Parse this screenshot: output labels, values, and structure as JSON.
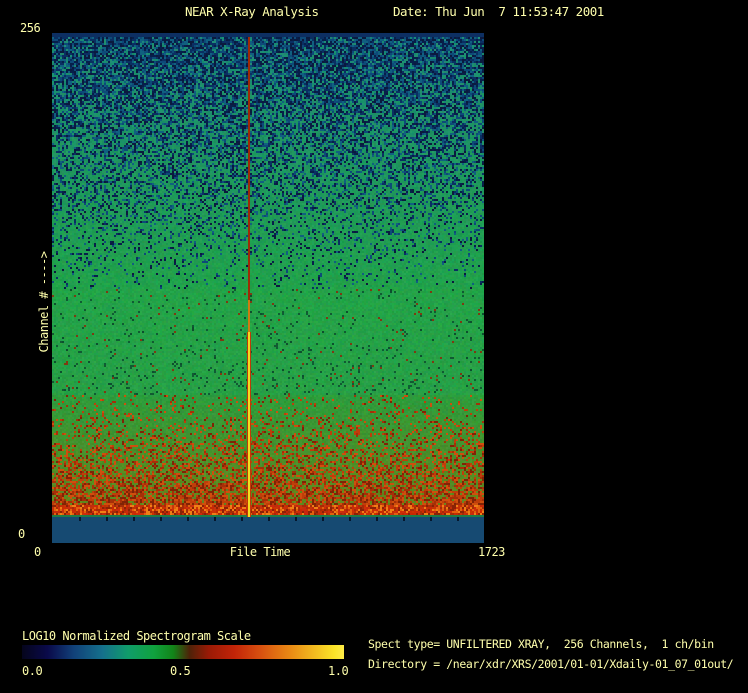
{
  "window": {
    "background": "#000000",
    "text_color": "#ffffac"
  },
  "header": {
    "title": "NEAR X-Ray Analysis",
    "date_label": "Date: Thu Jun  7 11:53:47 2001"
  },
  "footer": {
    "spect_type_line": "Spect type= UNFILTERED XRAY,  256 Channels,  1 ch/bin",
    "directory_line": "Directory = /near/xdr/XRS/2001/01-01/Xdaily-01_07_01out/"
  },
  "chart_data": {
    "type": "heatmap",
    "title": "NEAR X-Ray Analysis",
    "xlabel": "File Time",
    "ylabel": "Channel # ---->",
    "xlim": [
      0,
      1723
    ],
    "ylim": [
      0,
      256
    ],
    "x_tick_labels": [
      "0",
      "1723"
    ],
    "y_tick_labels": [
      "0",
      "256"
    ],
    "grid": false,
    "legend_position": "none",
    "colorbar": {
      "label": "LOG10 Normalized Spectrogram Scale",
      "tick_labels": [
        "0.0",
        "0.5",
        "1.0"
      ],
      "range": [
        0.0,
        1.0
      ],
      "colormap_stops": [
        "#05051c 0%",
        "#0a0a4a 8%",
        "#114078 16%",
        "#15708c 25%",
        "#109c6a 33%",
        "#10a23e 41%",
        "#128418 47%",
        "#4e2208 52%",
        "#9a1a06 58%",
        "#c22408 66%",
        "#d85010 74%",
        "#e98814 83%",
        "#f2bc20 91%",
        "#fbe428 97%",
        "#ffec48 100%"
      ]
    },
    "bands": [
      {
        "name": "top-edge-band",
        "ch": [
          253.5,
          256
        ],
        "value": 0.07,
        "solid": "#0d2f62"
      },
      {
        "name": "upper-noise-fade",
        "ch": [
          127,
          253.5
        ],
        "value_range": [
          0.1,
          0.42
        ],
        "base_from": "#1b8a74",
        "base_to": "#21a24a",
        "speckle": [
          "#071f4a",
          "#0a2f62",
          "#0d4a78",
          "#0b1a3e",
          "#106080"
        ],
        "density": [
          0.85,
          0.04
        ],
        "curve": 0.9
      },
      {
        "name": "mid-green",
        "ch": [
          74,
          127
        ],
        "value": 0.43,
        "base_from": "#23a348",
        "base_to": "#27a046",
        "speckle": [
          "#0d4f2e",
          "#0f5c34",
          "#115a32",
          "#7e3a12"
        ],
        "density": [
          0.05,
          0.09
        ],
        "curve": 1
      },
      {
        "name": "lower-red-speckle",
        "ch": [
          19,
          74
        ],
        "value_range": [
          0.46,
          0.62
        ],
        "base_from": "#2c9c3c",
        "base_to": "#63861c",
        "speckle": [
          "#a53008",
          "#bf3e0a",
          "#802405",
          "#cf4f0d"
        ],
        "density": [
          0.1,
          0.8
        ],
        "curve": 1.7
      },
      {
        "name": "bright-red-band",
        "ch": [
          14,
          19
        ],
        "value": 0.65,
        "base_from": "#c62f08",
        "base_to": "#c92b07",
        "speckle": [
          "#e2600e",
          "#8a2206",
          "#ef7f16",
          "#a52c08"
        ],
        "density": [
          0.55,
          0.6
        ],
        "curve": 1
      },
      {
        "name": "green-separator-line",
        "ch": [
          13,
          14
        ],
        "value": 0.4,
        "solid": "#1e7c46"
      },
      {
        "name": "bottom-blue-band",
        "ch": [
          0,
          13
        ],
        "value": 0.1,
        "solid": "#164a72"
      }
    ],
    "event_line": {
      "time": 782,
      "peak_value": 0.95,
      "description": "bright vertical event line spanning all channels",
      "color_top": "#9e2a06",
      "color_mid": "#cf7a10",
      "color_bottom": "#f2dc1e",
      "color_edge": "#bf3a08"
    },
    "axis_tick_color": "#05182f",
    "axis_tick_count": 16
  }
}
